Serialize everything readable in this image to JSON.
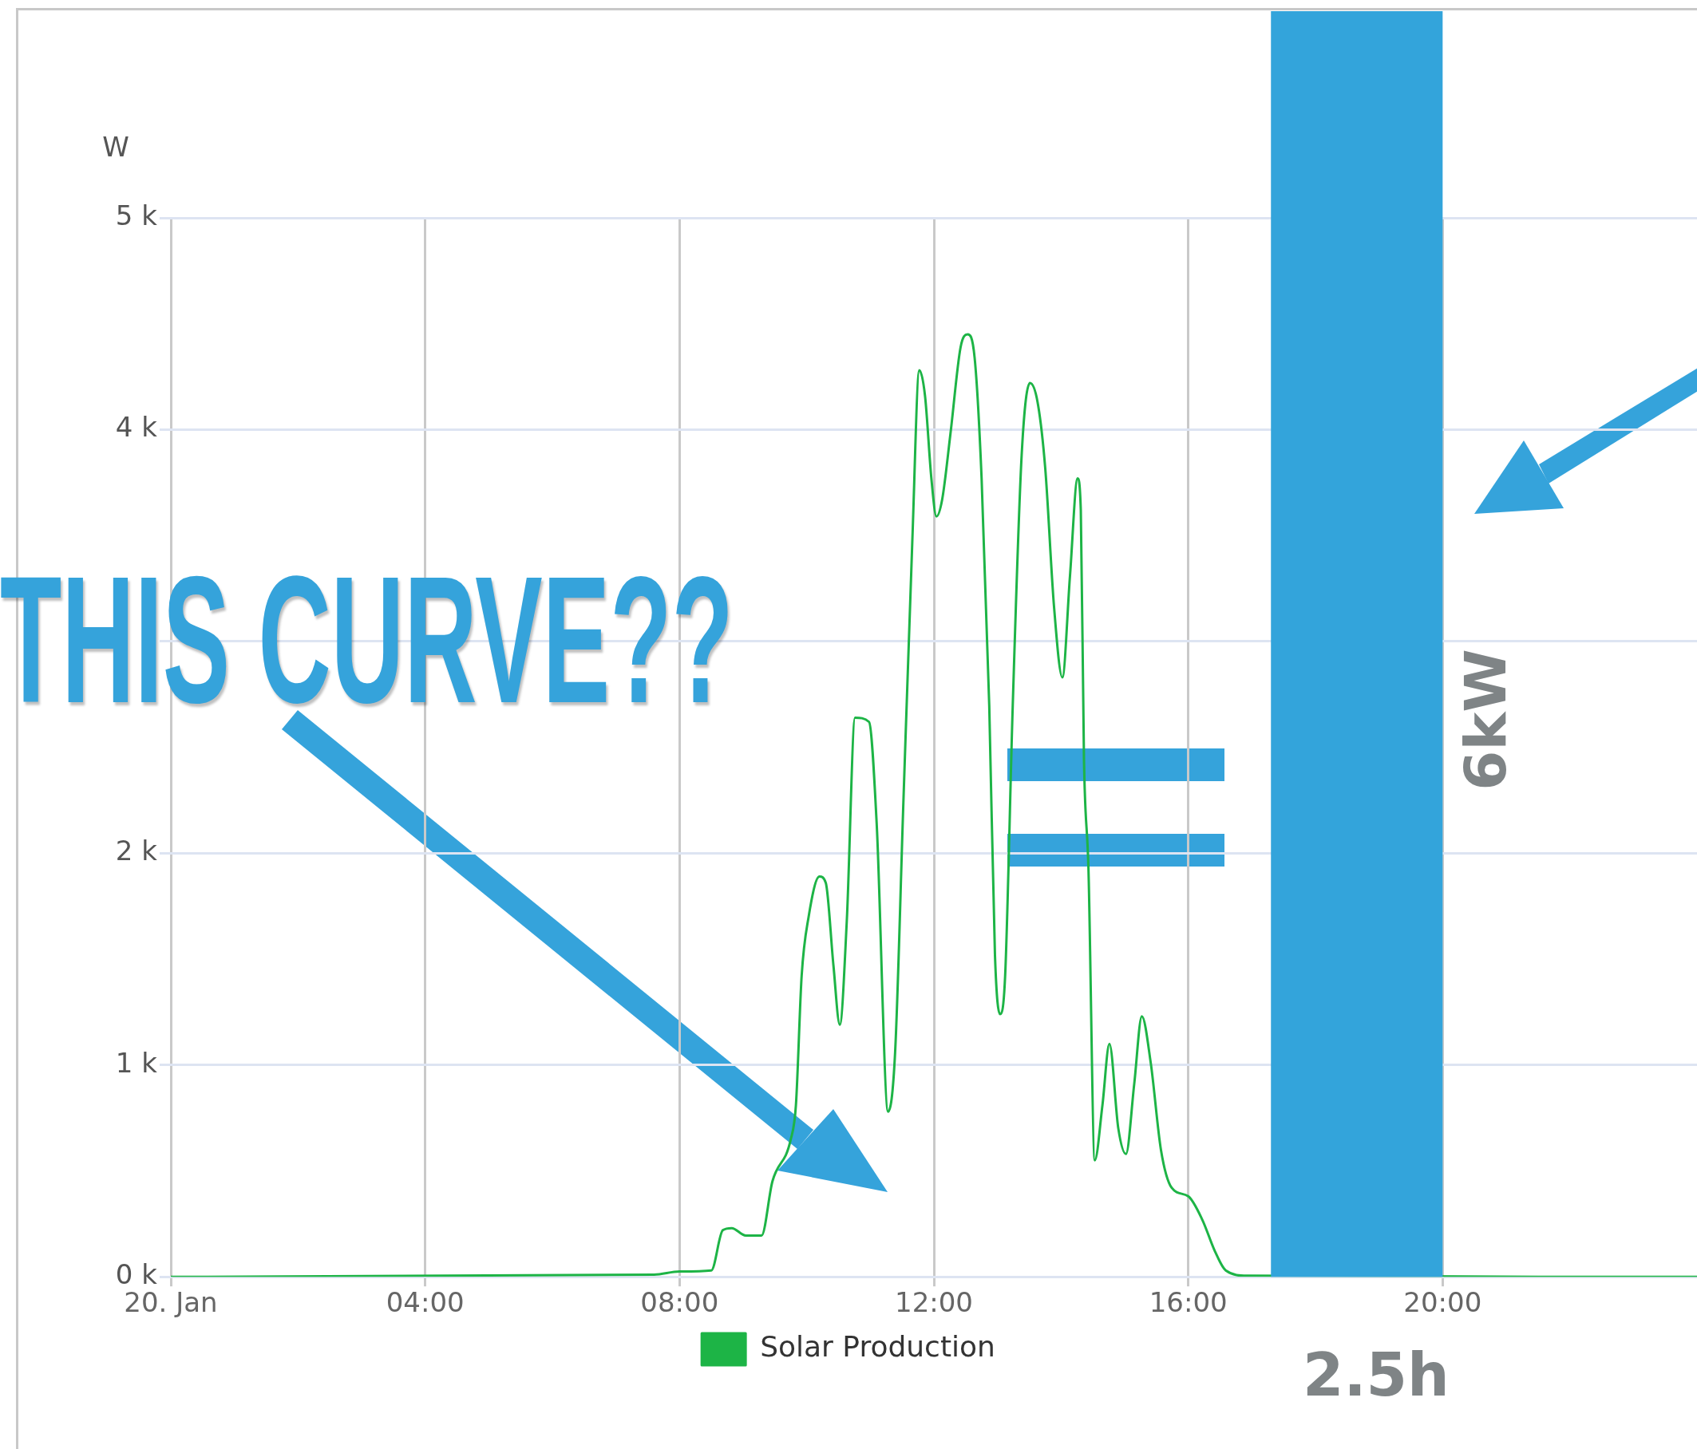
{
  "chart_data": {
    "type": "line",
    "ylabel": "W",
    "x": [
      0,
      7.6,
      8.0,
      8.5,
      8.68,
      8.82,
      9.04,
      9.29,
      9.46,
      9.75,
      9.83,
      9.92,
      10.03,
      10.2,
      10.3,
      10.42,
      10.52,
      10.63,
      10.76,
      10.98,
      11.1,
      11.28,
      11.39,
      11.52,
      11.66,
      11.77,
      11.86,
      11.96,
      12.04,
      12.13,
      12.26,
      12.42,
      12.53,
      12.64,
      12.75,
      12.87,
      12.96,
      13.04,
      13.12,
      13.24,
      13.38,
      13.51,
      13.63,
      13.75,
      13.89,
      14.02,
      14.14,
      14.26,
      14.31,
      14.36,
      14.43,
      14.53,
      14.65,
      14.76,
      14.9,
      15.02,
      15.15,
      15.27,
      15.41,
      15.57,
      15.74,
      16.0,
      16.22,
      16.42,
      16.59,
      16.93,
      24
    ],
    "series": [
      {
        "name": "Solar Production",
        "color": "#1db446",
        "values": [
          0,
          10,
          25,
          30,
          220,
          230,
          195,
          195,
          450,
          650,
          810,
          1420,
          1700,
          1890,
          1860,
          1470,
          1190,
          1680,
          2640,
          2620,
          2140,
          780,
          1060,
          2240,
          3470,
          4280,
          4160,
          3770,
          3590,
          3670,
          3980,
          4390,
          4450,
          4340,
          3770,
          2700,
          1520,
          1240,
          1420,
          2700,
          3880,
          4220,
          4130,
          3820,
          3160,
          2830,
          3310,
          3770,
          3620,
          2440,
          1930,
          550,
          810,
          1100,
          700,
          580,
          910,
          1230,
          1010,
          600,
          420,
          380,
          270,
          120,
          30,
          5,
          0
        ]
      }
    ],
    "xlim": [
      0,
      24
    ],
    "xticks": [
      {
        "value": 0,
        "label": "20. Jan"
      },
      {
        "value": 4,
        "label": "04:00"
      },
      {
        "value": 8,
        "label": "08:00"
      },
      {
        "value": 12,
        "label": "12:00"
      },
      {
        "value": 16,
        "label": "16:00"
      },
      {
        "value": 20,
        "label": "20:00"
      }
    ],
    "ylim": [
      0,
      5000
    ],
    "yticks": [
      {
        "value": 0,
        "label": "0 k"
      },
      {
        "value": 1000,
        "label": "1 k"
      },
      {
        "value": 2000,
        "label": "2 k"
      },
      {
        "value": 3000,
        "label": null
      },
      {
        "value": 4000,
        "label": "4 k"
      },
      {
        "value": 5000,
        "label": "5 k"
      }
    ],
    "grid": true,
    "legend": "bottom",
    "bands": [
      {
        "axis": "x",
        "from": 17.3,
        "to": 20,
        "label": "6kW",
        "color": "#33a4db"
      }
    ],
    "annotations": [
      "THIS CURVE??",
      "2.5h"
    ]
  }
}
